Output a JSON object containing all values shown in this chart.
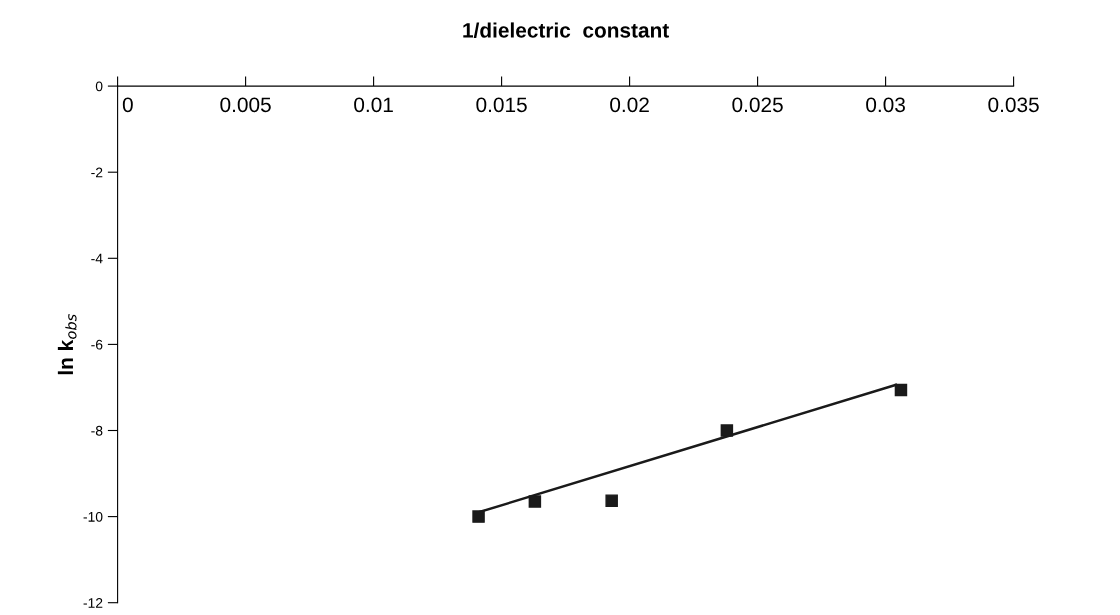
{
  "chart_data": {
    "type": "scatter",
    "xlabel": "1/dielectric  constant",
    "ylabel": "ln k$_{obs}$",
    "xlim": [
      0,
      0.035
    ],
    "xticks": [
      0,
      0.005,
      0.01,
      0.015,
      0.02,
      0.025,
      0.03,
      0.035
    ],
    "ylim": [
      -12,
      0
    ],
    "yticks": [
      -12,
      -10,
      -8,
      -6,
      -4,
      -2,
      0
    ],
    "grid": false,
    "series": [
      {
        "color": "#1a1a1a",
        "marker": "square",
        "x": [
          0.0141,
          0.0163,
          0.0193,
          0.0238,
          0.0306
        ],
        "values": [
          -10.0,
          -9.65,
          -9.63,
          -8.0,
          -7.06
        ]
      },
      {
        "type": "line",
        "color": "#1a1a1a",
        "x": [
          0.0141,
          0.0304
        ],
        "values": [
          -9.9,
          -6.94
        ]
      }
    ]
  }
}
